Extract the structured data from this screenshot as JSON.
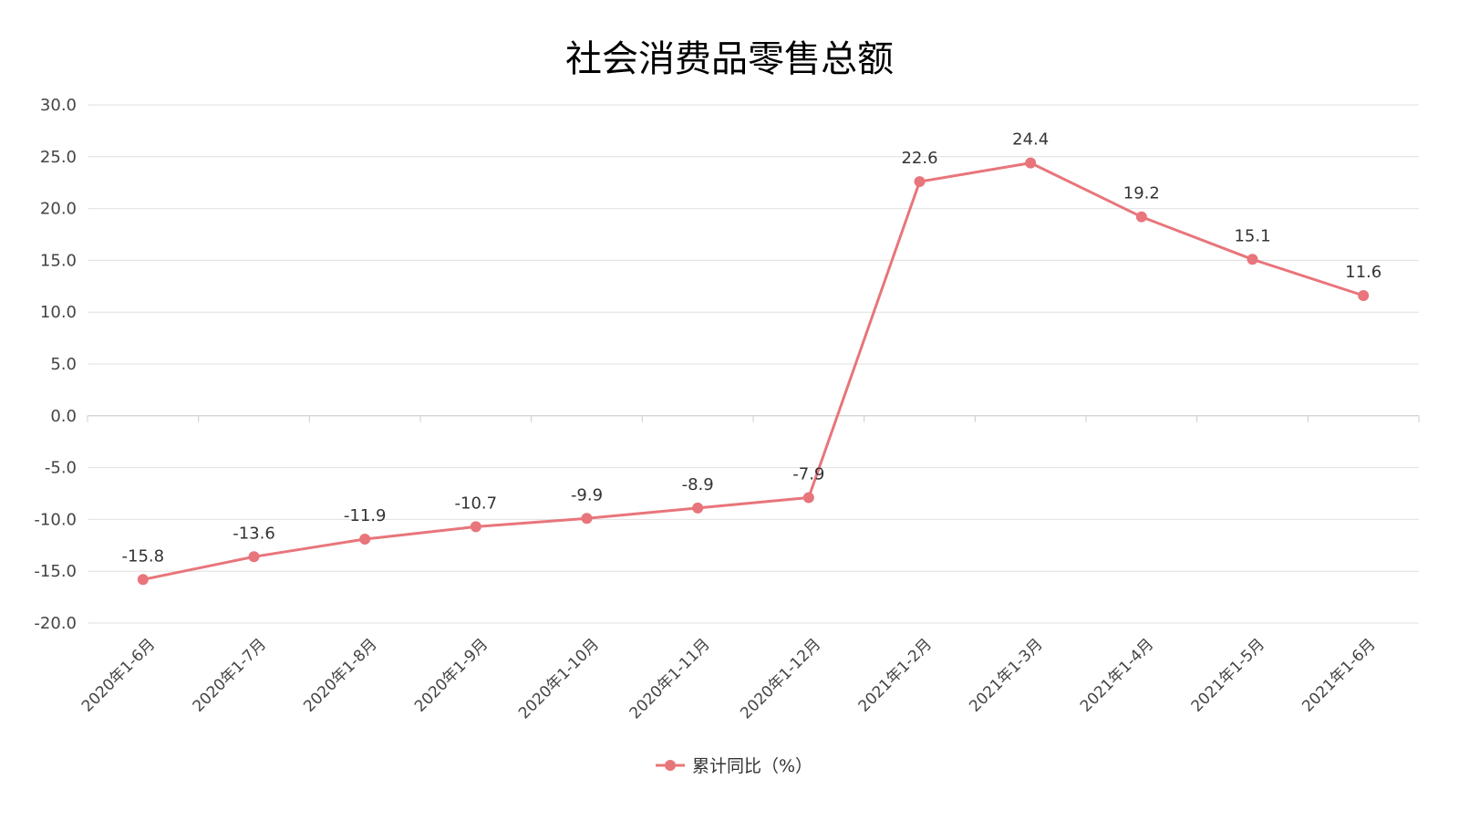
{
  "chart_data": {
    "type": "line",
    "title": "社会消费品零售总额",
    "xlabel": "",
    "ylabel": "",
    "categories": [
      "2020年1-6月",
      "2020年1-7月",
      "2020年1-8月",
      "2020年1-9月",
      "2020年1-10月",
      "2020年1-11月",
      "2020年1-12月",
      "2021年1-2月",
      "2021年1-3月",
      "2021年1-4月",
      "2021年1-5月",
      "2021年1-6月"
    ],
    "series": [
      {
        "name": "累计同比（%）",
        "values": [
          -15.8,
          -13.6,
          -11.9,
          -10.7,
          -9.9,
          -8.9,
          -7.9,
          22.6,
          24.4,
          19.2,
          15.1,
          11.6
        ],
        "labels": [
          "-15.8",
          "-13.6",
          "-11.9",
          "-10.7",
          "-9.9",
          "-8.9",
          "-7.9",
          "22.6",
          "24.4",
          "19.2",
          "15.1",
          "11.6"
        ],
        "color": "#e8757b"
      }
    ],
    "ylim": [
      -20,
      30
    ],
    "yticks": [
      30,
      25,
      20,
      15,
      10,
      5,
      0,
      -5,
      -10,
      -15,
      -20
    ],
    "ytick_labels": [
      "30.0",
      "25.0",
      "20.0",
      "15.0",
      "10.0",
      "5.0",
      "0.0",
      "-5.0",
      "-10.0",
      "-15.0",
      "-20.0"
    ],
    "grid": true,
    "legend_position": "bottom-center",
    "colors": {
      "line": "#e8757b",
      "grid": "#e0e0e0",
      "axis": "#cccccc"
    }
  }
}
